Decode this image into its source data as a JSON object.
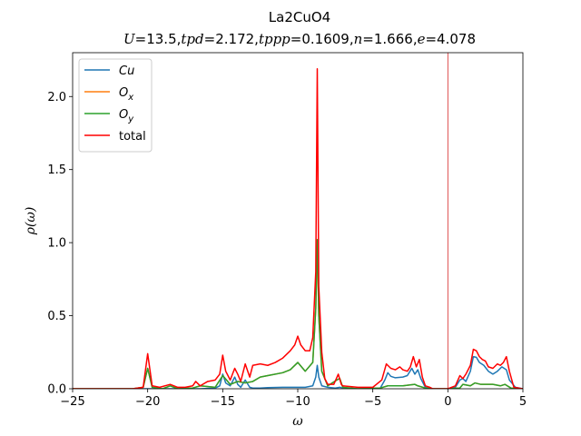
{
  "chart_data": {
    "type": "line",
    "title": "La2CuO4",
    "subtitle": "U=13.5,tpd=2.172,tppp=0.1609,n=1.666,e=4.078",
    "xlabel": "ω",
    "ylabel": "ρ(ω)",
    "xlim": [
      -25,
      5
    ],
    "ylim": [
      0,
      2.3
    ],
    "xticks": [
      -25,
      -20,
      -15,
      -10,
      -5,
      0,
      5
    ],
    "xtick_labels": [
      "−25",
      "−20",
      "−15",
      "−10",
      "−5",
      "0",
      "5"
    ],
    "yticks": [
      0.0,
      0.5,
      1.0,
      1.5,
      2.0
    ],
    "ytick_labels": [
      "0.0",
      "0.5",
      "1.0",
      "1.5",
      "2.0"
    ],
    "grid": false,
    "legend_position": "upper-left",
    "vline": {
      "x": 0,
      "color": "#d62728"
    },
    "series": [
      {
        "name": "Cu",
        "color": "#1f77b4",
        "x": [
          -25,
          -21,
          -20.3,
          -20,
          -19.7,
          -19,
          -18.5,
          -18,
          -17,
          -16.5,
          -15.5,
          -15.2,
          -15,
          -14.8,
          -14.5,
          -14.2,
          -14,
          -13.8,
          -13.5,
          -13.2,
          -13,
          -12.5,
          -12,
          -11,
          -10,
          -9.5,
          -9,
          -8.8,
          -8.7,
          -8.6,
          -8.4,
          -8,
          -7.5,
          -7.2,
          -7,
          -6,
          -4.5,
          -4.2,
          -4,
          -3.8,
          -3.5,
          -3,
          -2.7,
          -2.4,
          -2.2,
          -2,
          -1.8,
          -1.5,
          -1,
          0,
          0.5,
          0.8,
          1.0,
          1.2,
          1.5,
          1.7,
          1.9,
          2.1,
          2.4,
          2.7,
          3,
          3.3,
          3.6,
          3.9,
          4.1,
          4.5,
          5
        ],
        "y": [
          0,
          0,
          0,
          0,
          0,
          0,
          0,
          0,
          0,
          0,
          0.005,
          0.02,
          0.1,
          0.04,
          0.02,
          0.08,
          0.03,
          0.01,
          0.06,
          0.01,
          0.005,
          0.005,
          0.008,
          0.01,
          0.01,
          0.01,
          0.02,
          0.08,
          0.16,
          0.08,
          0.02,
          0.01,
          0.005,
          0.01,
          0.005,
          0,
          0.005,
          0.06,
          0.11,
          0.085,
          0.075,
          0.08,
          0.09,
          0.14,
          0.1,
          0.13,
          0.07,
          0.01,
          0,
          0,
          0.01,
          0.06,
          0.07,
          0.05,
          0.12,
          0.22,
          0.215,
          0.18,
          0.16,
          0.12,
          0.1,
          0.12,
          0.15,
          0.13,
          0.06,
          0.01,
          0
        ]
      },
      {
        "name": "Ox",
        "color": "#ff7f0e",
        "x": [
          -25,
          -21,
          -20.3,
          -20,
          -19.7,
          -19,
          -18.5,
          -18,
          -17,
          -16.5,
          -15.5,
          -15,
          -14.5,
          -14,
          -13.5,
          -13,
          -12.5,
          -12,
          -11,
          -10.5,
          -10,
          -9.5,
          -9,
          -8.8,
          -8.7,
          -8.6,
          -8.4,
          -8,
          -7.4,
          -7.2,
          -7,
          -6,
          -4.5,
          -4,
          -3,
          -2.2,
          -2,
          -1.5,
          -1,
          0,
          0.8,
          1.0,
          1.5,
          1.8,
          2.2,
          3,
          3.5,
          3.8,
          4.2,
          5
        ],
        "y": [
          0,
          0,
          0.01,
          0.14,
          0.01,
          0,
          0.02,
          0,
          0.005,
          0.02,
          0.01,
          0.09,
          0.03,
          0.05,
          0.04,
          0.05,
          0.08,
          0.09,
          0.11,
          0.13,
          0.18,
          0.12,
          0.18,
          0.55,
          1.02,
          0.5,
          0.12,
          0.02,
          0.06,
          0.07,
          0.01,
          0,
          0.005,
          0.02,
          0.02,
          0.03,
          0.02,
          0.005,
          0,
          0,
          0.005,
          0.03,
          0.02,
          0.04,
          0.03,
          0.03,
          0.02,
          0.03,
          0.005,
          0
        ]
      },
      {
        "name": "Oy",
        "color": "#2ca02c",
        "x": [
          -25,
          -21,
          -20.3,
          -20,
          -19.7,
          -19,
          -18.5,
          -18,
          -17,
          -16.5,
          -15.5,
          -15,
          -14.5,
          -14,
          -13.5,
          -13,
          -12.5,
          -12,
          -11,
          -10.5,
          -10,
          -9.5,
          -9,
          -8.8,
          -8.7,
          -8.6,
          -8.4,
          -8,
          -7.4,
          -7.2,
          -7,
          -6,
          -4.5,
          -4,
          -3,
          -2.2,
          -2,
          -1.5,
          -1,
          0,
          0.8,
          1.0,
          1.5,
          1.8,
          2.2,
          3,
          3.5,
          3.8,
          4.2,
          5
        ],
        "y": [
          0,
          0,
          0.01,
          0.14,
          0.01,
          0,
          0.02,
          0,
          0.005,
          0.02,
          0.01,
          0.09,
          0.03,
          0.05,
          0.04,
          0.05,
          0.08,
          0.09,
          0.11,
          0.13,
          0.18,
          0.12,
          0.18,
          0.55,
          1.02,
          0.5,
          0.12,
          0.02,
          0.06,
          0.07,
          0.01,
          0,
          0.005,
          0.02,
          0.02,
          0.03,
          0.02,
          0.005,
          0,
          0,
          0.005,
          0.03,
          0.02,
          0.04,
          0.03,
          0.03,
          0.02,
          0.03,
          0.005,
          0
        ]
      },
      {
        "name": "total",
        "color": "#ff0000",
        "x": [
          -25,
          -21,
          -20.3,
          -20,
          -19.7,
          -19.2,
          -18.5,
          -18,
          -17.5,
          -17,
          -16.8,
          -16.5,
          -16,
          -15.5,
          -15.2,
          -15,
          -14.8,
          -14.5,
          -14.2,
          -14,
          -13.8,
          -13.5,
          -13.2,
          -13,
          -12.5,
          -12,
          -11.5,
          -11,
          -10.5,
          -10.2,
          -10,
          -9.8,
          -9.5,
          -9.2,
          -9,
          -8.8,
          -8.7,
          -8.6,
          -8.4,
          -8.2,
          -8,
          -7.6,
          -7.3,
          -7.1,
          -7,
          -6,
          -5,
          -4.4,
          -4.1,
          -4,
          -3.8,
          -3.5,
          -3.2,
          -3,
          -2.7,
          -2.5,
          -2.3,
          -2.1,
          -1.9,
          -1.7,
          -1.5,
          -1.2,
          -1,
          0,
          0.5,
          0.8,
          1.0,
          1.2,
          1.5,
          1.7,
          1.9,
          2.1,
          2.3,
          2.5,
          2.7,
          3,
          3.3,
          3.5,
          3.7,
          3.9,
          4.1,
          4.4,
          5
        ],
        "y": [
          0,
          0,
          0.01,
          0.24,
          0.02,
          0.01,
          0.03,
          0.01,
          0.01,
          0.02,
          0.05,
          0.02,
          0.05,
          0.06,
          0.1,
          0.23,
          0.12,
          0.06,
          0.14,
          0.1,
          0.05,
          0.17,
          0.08,
          0.16,
          0.17,
          0.16,
          0.18,
          0.21,
          0.26,
          0.3,
          0.36,
          0.3,
          0.26,
          0.26,
          0.35,
          0.8,
          2.19,
          0.7,
          0.25,
          0.07,
          0.03,
          0.03,
          0.1,
          0.03,
          0.02,
          0.01,
          0.01,
          0.06,
          0.17,
          0.16,
          0.14,
          0.13,
          0.15,
          0.13,
          0.12,
          0.15,
          0.22,
          0.15,
          0.2,
          0.08,
          0.02,
          0.01,
          0,
          0,
          0.02,
          0.09,
          0.07,
          0.1,
          0.16,
          0.27,
          0.26,
          0.22,
          0.2,
          0.19,
          0.15,
          0.14,
          0.17,
          0.16,
          0.18,
          0.22,
          0.12,
          0.01,
          0
        ]
      }
    ],
    "legend": [
      {
        "label": "Cu",
        "color": "#1f77b4"
      },
      {
        "label": "O",
        "sub": "x",
        "color": "#ff7f0e"
      },
      {
        "label": "O",
        "sub": "y",
        "color": "#2ca02c"
      },
      {
        "label": "total",
        "color": "#ff0000"
      }
    ]
  }
}
